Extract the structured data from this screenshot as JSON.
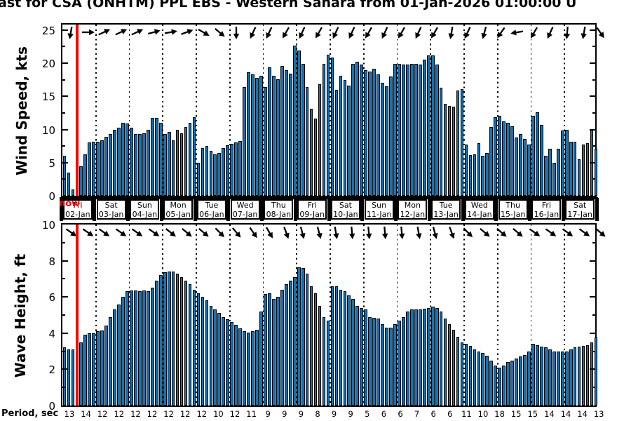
{
  "title": "ast for CSA (ONHTM) PPL EBS  - Western Sahara from 01-Jan-2026 01:00:00 U",
  "now_label": "now",
  "colors": {
    "bar_fill": "#0E72B8",
    "bar_edge": "#000000",
    "now_line": "#FF0000",
    "now_text": "#FF0000",
    "grid": "#000000"
  },
  "day_labels": [
    {
      "weekday": "Fri",
      "date": "02-Jan"
    },
    {
      "weekday": "Sat",
      "date": "03-Jan"
    },
    {
      "weekday": "Sun",
      "date": "04-Jan"
    },
    {
      "weekday": "Mon",
      "date": "05-Jan"
    },
    {
      "weekday": "Tue",
      "date": "06-Jan"
    },
    {
      "weekday": "Wed",
      "date": "07-Jan"
    },
    {
      "weekday": "Thu",
      "date": "08-Jan"
    },
    {
      "weekday": "Fri",
      "date": "09-Jan"
    },
    {
      "weekday": "Sat",
      "date": "10-Jan"
    },
    {
      "weekday": "Sun",
      "date": "11-Jan"
    },
    {
      "weekday": "Mon",
      "date": "12-Jan"
    },
    {
      "weekday": "Tue",
      "date": "13-Jan"
    },
    {
      "weekday": "Wed",
      "date": "14-Jan"
    },
    {
      "weekday": "Thu",
      "date": "15-Jan"
    },
    {
      "weekday": "Fri",
      "date": "16-Jan"
    },
    {
      "weekday": "Sat",
      "date": "17-Jan"
    }
  ],
  "period_axis": {
    "label": "Period, sec",
    "values": [
      13,
      14,
      12,
      12,
      12,
      12,
      12,
      12,
      12,
      10,
      12,
      11,
      9,
      9,
      9,
      8,
      9,
      9,
      5,
      6,
      6,
      7,
      6,
      6,
      11,
      10,
      18,
      15,
      15,
      14,
      14,
      14,
      13
    ]
  },
  "chart_data": [
    {
      "type": "bar",
      "name": "wind-speed",
      "ylabel": "Wind Speed, kts",
      "units": "kts",
      "ylim": [
        0,
        25.83
      ],
      "yticks": [
        0,
        5,
        10,
        15,
        20,
        25
      ],
      "bars_per_day": 8,
      "values": [
        6.0,
        3.5,
        1.0,
        0.5,
        4.5,
        6.3,
        8.0,
        8.1,
        8.2,
        8.4,
        8.9,
        9.3,
        10.0,
        10.3,
        11.0,
        10.9,
        10.3,
        9.3,
        9.3,
        9.4,
        10.0,
        11.8,
        11.8,
        11.0,
        9.3,
        9.6,
        8.4,
        10.0,
        9.4,
        10.4,
        11.0,
        11.9,
        5.0,
        7.2,
        7.5,
        6.8,
        6.3,
        6.5,
        7.2,
        7.6,
        7.8,
        8.0,
        8.3,
        16.4,
        18.6,
        18.3,
        17.8,
        18.1,
        16.4,
        19.4,
        18.1,
        17.6,
        19.6,
        18.9,
        18.4,
        22.7,
        21.9,
        19.9,
        16.4,
        13.1,
        11.6,
        16.8,
        19.9,
        21.3,
        20.9,
        16.0,
        18.1,
        17.5,
        16.6,
        19.9,
        20.2,
        19.8,
        18.9,
        18.7,
        19.2,
        18.3,
        17.0,
        16.5,
        18.0,
        19.9,
        19.9,
        19.8,
        19.8,
        19.9,
        19.9,
        19.8,
        20.5,
        21.2,
        21.2,
        19.8,
        16.3,
        13.9,
        13.6,
        13.4,
        15.9,
        16.1,
        7.7,
        6.1,
        6.3,
        7.9,
        6.0,
        6.5,
        10.4,
        11.9,
        12.1,
        11.2,
        11.0,
        10.5,
        8.8,
        9.3,
        8.6,
        7.7,
        12.1,
        12.6,
        10.7,
        6.0,
        7.1,
        5.0,
        7.1,
        9.8,
        9.9,
        8.2,
        8.2,
        5.5,
        7.7,
        7.9,
        10.0,
        7.1
      ],
      "arrow_directions_deg": [
        100,
        0,
        335,
        335,
        335,
        345,
        350,
        340,
        30,
        40,
        90,
        115,
        115,
        120,
        115,
        120,
        115,
        115,
        120,
        115,
        120,
        115,
        120,
        100,
        115,
        105,
        125,
        170,
        120,
        115,
        95,
        100,
        55
      ]
    },
    {
      "type": "bar",
      "name": "wave-height",
      "ylabel": "Wave Height, ft",
      "units": "ft",
      "ylim": [
        0,
        10
      ],
      "yticks": [
        0,
        2,
        4,
        6,
        8,
        10
      ],
      "bars_per_day": 8,
      "values": [
        3.2,
        3.1,
        3.1,
        3.2,
        3.5,
        3.9,
        4.0,
        4.0,
        4.1,
        4.15,
        4.4,
        4.9,
        5.3,
        5.6,
        6.0,
        6.3,
        6.35,
        6.35,
        6.3,
        6.35,
        6.3,
        6.5,
        6.9,
        7.2,
        7.35,
        7.4,
        7.4,
        7.3,
        7.1,
        6.9,
        6.7,
        6.4,
        6.2,
        6.0,
        5.8,
        5.5,
        5.3,
        5.1,
        4.9,
        4.75,
        4.6,
        4.45,
        4.25,
        4.1,
        4.05,
        4.1,
        4.2,
        5.2,
        6.15,
        6.2,
        5.9,
        6.0,
        6.4,
        6.7,
        6.9,
        7.1,
        7.65,
        7.6,
        7.3,
        6.6,
        6.2,
        5.5,
        4.9,
        4.7,
        6.6,
        6.6,
        6.4,
        6.3,
        6.1,
        5.9,
        5.5,
        5.4,
        5.3,
        4.9,
        4.85,
        4.8,
        4.5,
        4.3,
        4.3,
        4.5,
        4.7,
        4.9,
        5.2,
        5.3,
        5.3,
        5.3,
        5.35,
        5.4,
        5.45,
        5.4,
        5.2,
        4.8,
        4.5,
        4.2,
        3.8,
        3.5,
        3.4,
        3.3,
        3.1,
        3.0,
        2.9,
        2.75,
        2.5,
        2.2,
        2.1,
        2.2,
        2.4,
        2.5,
        2.6,
        2.7,
        2.8,
        3.0,
        3.4,
        3.35,
        3.25,
        3.2,
        3.1,
        3.0,
        3.0,
        3.0,
        3.0,
        3.1,
        3.2,
        3.25,
        3.3,
        3.35,
        3.5,
        3.75
      ],
      "arrow_directions_deg": [
        35,
        35,
        35,
        35,
        35,
        35,
        38,
        40,
        40,
        45,
        50,
        55,
        60,
        70,
        75,
        75,
        80,
        85,
        85,
        85,
        85,
        80,
        75,
        70,
        45,
        40,
        40,
        40,
        35,
        35,
        35,
        35,
        40
      ]
    }
  ]
}
